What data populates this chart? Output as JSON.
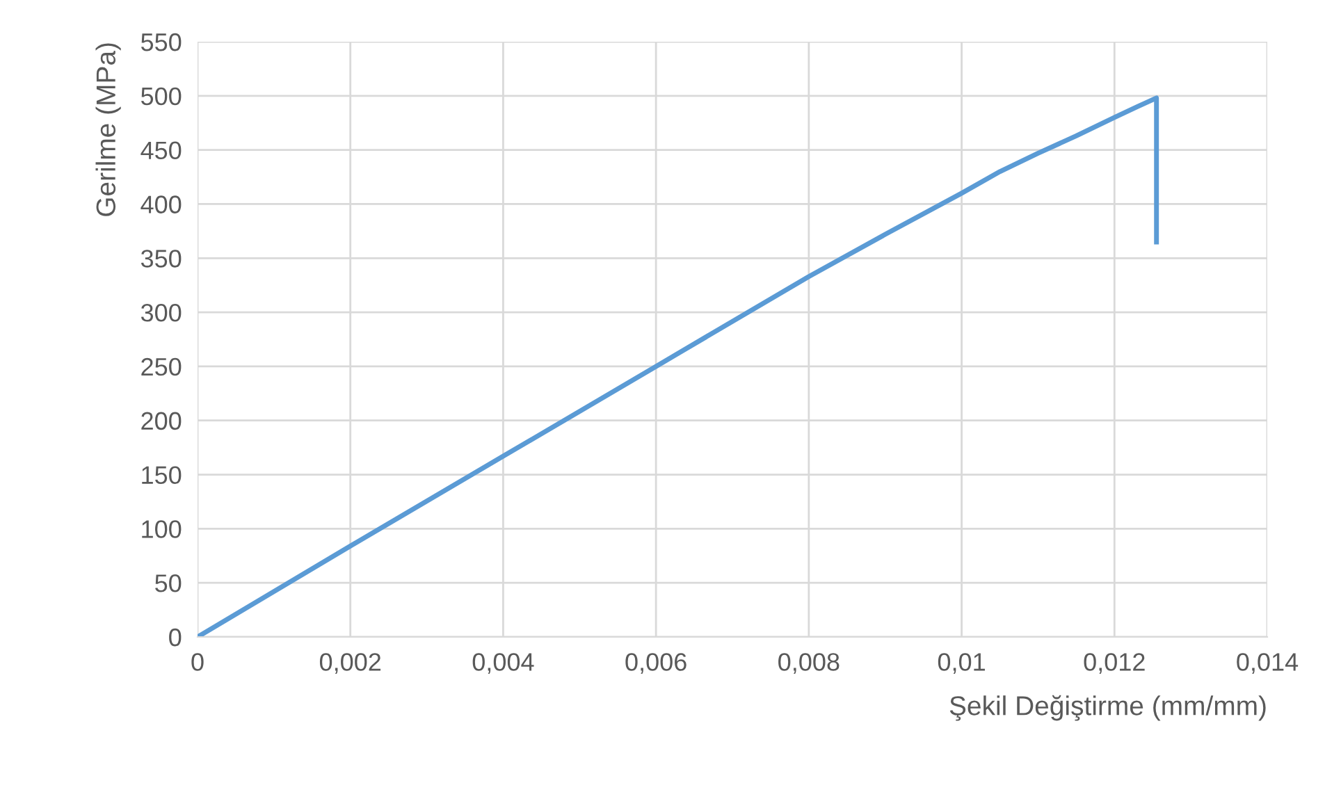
{
  "chart_data": {
    "type": "line",
    "xlabel": "Şekil Değiştirme (mm/mm)",
    "ylabel": "Gerilme (MPa)",
    "series": [
      {
        "color": "#5b9bd5",
        "x": [
          0,
          0.002,
          0.004,
          0.006,
          0.008,
          0.009,
          0.01,
          0.0105,
          0.011,
          0.0115,
          0.012,
          0.0123,
          0.01255,
          0.01255
        ],
        "values": [
          0,
          84,
          167,
          250,
          333,
          372,
          410,
          430,
          447,
          463,
          480,
          490,
          498,
          365
        ]
      }
    ],
    "xlim": [
      0,
      0.014
    ],
    "ylim": [
      0,
      550
    ],
    "xticks": [
      0,
      {
        "value": 0.002,
        "label": "0,002"
      },
      {
        "value": 0.004,
        "label": "0,004"
      },
      {
        "value": 0.006,
        "label": "0,006"
      },
      {
        "value": 0.008,
        "label": "0,008"
      },
      {
        "value": 0.01,
        "label": "0,01"
      },
      {
        "value": 0.012,
        "label": "0,012"
      },
      {
        "value": 0.014,
        "label": "0,014"
      }
    ],
    "yticks": [
      0,
      50,
      100,
      150,
      200,
      250,
      300,
      350,
      400,
      450,
      500,
      550
    ],
    "grid": true,
    "legend": false,
    "marker": "none",
    "line_style": "solid"
  }
}
